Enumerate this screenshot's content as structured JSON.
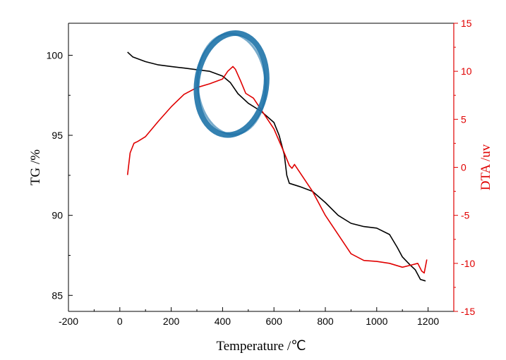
{
  "chart_data": {
    "type": "line",
    "title": "",
    "xlabel": "Temperature /℃",
    "ylabel": "TG /%",
    "y2label": "DTA /uv",
    "xlim": [
      -200,
      1300
    ],
    "ylim": [
      84,
      102
    ],
    "y2lim": [
      -15,
      15
    ],
    "xticks": [
      -200,
      0,
      200,
      400,
      600,
      800,
      1000,
      1200
    ],
    "yticks": [
      85,
      90,
      95,
      100
    ],
    "y2ticks": [
      -15,
      -10,
      -5,
      0,
      5,
      10,
      15
    ],
    "grid": false,
    "legend": "none",
    "series": [
      {
        "axis": "left",
        "color": "#000000",
        "points": [
          [
            30,
            100.2
          ],
          [
            50,
            99.9
          ],
          [
            100,
            99.6
          ],
          [
            150,
            99.4
          ],
          [
            200,
            99.3
          ],
          [
            250,
            99.2
          ],
          [
            300,
            99.1
          ],
          [
            350,
            99.0
          ],
          [
            400,
            98.7
          ],
          [
            430,
            98.3
          ],
          [
            460,
            97.6
          ],
          [
            500,
            97.0
          ],
          [
            550,
            96.5
          ],
          [
            600,
            95.8
          ],
          [
            620,
            95.0
          ],
          [
            640,
            93.8
          ],
          [
            650,
            92.5
          ],
          [
            660,
            92.0
          ],
          [
            700,
            91.8
          ],
          [
            750,
            91.5
          ],
          [
            800,
            90.8
          ],
          [
            850,
            90.0
          ],
          [
            900,
            89.5
          ],
          [
            950,
            89.3
          ],
          [
            1000,
            89.2
          ],
          [
            1050,
            88.8
          ],
          [
            1080,
            88.0
          ],
          [
            1100,
            87.4
          ],
          [
            1130,
            86.9
          ],
          [
            1150,
            86.6
          ],
          [
            1170,
            86.0
          ],
          [
            1190,
            85.9
          ]
        ]
      },
      {
        "axis": "right",
        "color": "#e00000",
        "points": [
          [
            30,
            -0.8
          ],
          [
            40,
            1.5
          ],
          [
            55,
            2.5
          ],
          [
            70,
            2.7
          ],
          [
            100,
            3.2
          ],
          [
            150,
            4.8
          ],
          [
            200,
            6.3
          ],
          [
            250,
            7.6
          ],
          [
            300,
            8.3
          ],
          [
            350,
            8.7
          ],
          [
            400,
            9.2
          ],
          [
            420,
            10.0
          ],
          [
            440,
            10.5
          ],
          [
            450,
            10.2
          ],
          [
            470,
            9.0
          ],
          [
            490,
            7.7
          ],
          [
            520,
            7.2
          ],
          [
            550,
            6.0
          ],
          [
            600,
            4.0
          ],
          [
            640,
            1.5
          ],
          [
            660,
            0.2
          ],
          [
            670,
            -0.1
          ],
          [
            680,
            0.3
          ],
          [
            700,
            -0.5
          ],
          [
            750,
            -2.5
          ],
          [
            800,
            -5.0
          ],
          [
            850,
            -7.0
          ],
          [
            900,
            -9.0
          ],
          [
            950,
            -9.7
          ],
          [
            1000,
            -9.8
          ],
          [
            1050,
            -10.0
          ],
          [
            1100,
            -10.4
          ],
          [
            1130,
            -10.2
          ],
          [
            1160,
            -10.0
          ],
          [
            1175,
            -10.8
          ],
          [
            1185,
            -11.0
          ],
          [
            1195,
            -9.6
          ]
        ]
      }
    ],
    "annotation": {
      "type": "hand-drawn-circle",
      "color": "#1e73a8",
      "center_x": 435,
      "center_y": 98.2,
      "radius_x": 135,
      "radius_y": 3.2
    },
    "colors": {
      "left_axis": "#000000",
      "right_axis": "#e00000",
      "highlight": "#1e73a8"
    }
  }
}
